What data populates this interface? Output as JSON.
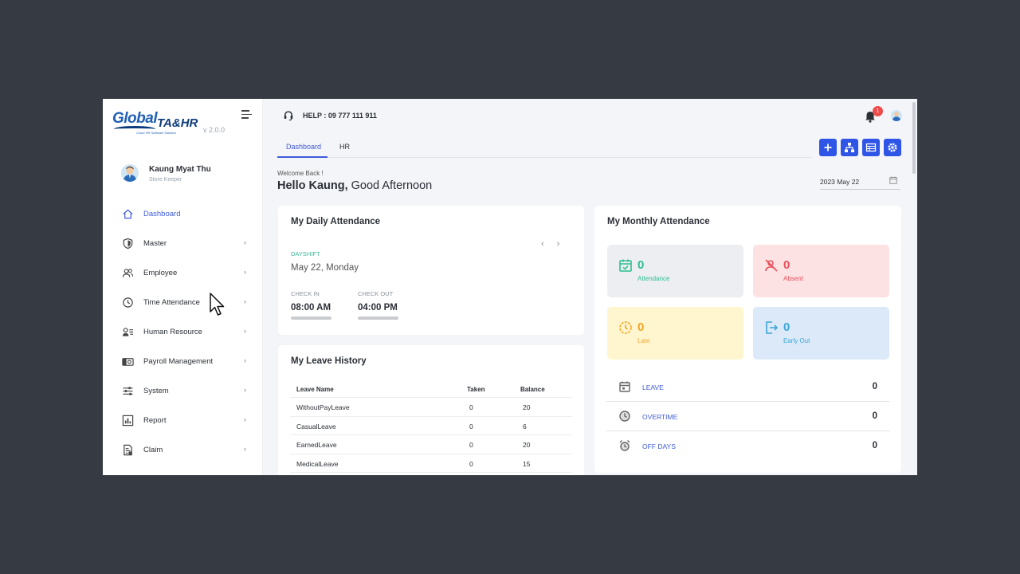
{
  "app": {
    "logo_text_1": "Global",
    "logo_text_2": "TA&HR",
    "logo_tagline": "Cloud HR Software Solution",
    "version": "v 2.0.0"
  },
  "user": {
    "name": "Kaung Myat Thu",
    "role": "Store Keeper"
  },
  "sidebar": {
    "items": [
      {
        "label": "Dashboard",
        "icon": "home-icon",
        "active": true
      },
      {
        "label": "Master",
        "icon": "shield-icon"
      },
      {
        "label": "Employee",
        "icon": "users-icon"
      },
      {
        "label": "Time Attendance",
        "icon": "clock-icon"
      },
      {
        "label": "Human Resource",
        "icon": "id-card-icon"
      },
      {
        "label": "Payroll Management",
        "icon": "money-icon"
      },
      {
        "label": "System",
        "icon": "sliders-icon"
      },
      {
        "label": "Report",
        "icon": "chart-icon"
      },
      {
        "label": "Claim",
        "icon": "document-icon"
      }
    ],
    "chevron": "›"
  },
  "header": {
    "help": "HELP : 09 777 111 911",
    "notification_count": "1"
  },
  "tabs": [
    {
      "label": "Dashboard",
      "active": true
    },
    {
      "label": "HR"
    }
  ],
  "actions": [
    "plus-icon",
    "org-chart-icon",
    "table-icon",
    "settings-icon"
  ],
  "greeting": {
    "welcome": "Welcome Back !",
    "hello": "Hello Kaung,",
    "salutation": " Good Afternoon"
  },
  "date_picker": {
    "value": "2023 May 22"
  },
  "daily_attendance": {
    "title": "My Daily Attendance",
    "prev": "‹",
    "next": "›",
    "shift": "DAYSHIFT",
    "date": "May 22, Monday",
    "check_in_label": "CHECK IN",
    "check_in_time": "08:00 AM",
    "check_out_label": "CHECK OUT",
    "check_out_time": "04:00 PM"
  },
  "leave_history": {
    "title": "My Leave History",
    "headers": [
      "Leave Name",
      "Taken",
      "Balance"
    ],
    "rows": [
      [
        "WithoutPayLeave",
        "0",
        "20"
      ],
      [
        "CasualLeave",
        "0",
        "6"
      ],
      [
        "EarnedLeave",
        "0",
        "20"
      ],
      [
        "MedicalLeave",
        "0",
        "15"
      ]
    ]
  },
  "monthly_attendance": {
    "title": "My Monthly Attendance",
    "stats": [
      {
        "label": "Attendance",
        "value": "0",
        "color": "#2fbf8f",
        "bg": "#eceef1"
      },
      {
        "label": "Absent",
        "value": "0",
        "color": "#e8505b",
        "bg": "#fde2e4"
      },
      {
        "label": "Late",
        "value": "0",
        "color": "#f5a524",
        "bg": "#fff6cf"
      },
      {
        "label": "Early Out",
        "value": "0",
        "color": "#3aa6d8",
        "bg": "#dce9f8"
      }
    ],
    "summary": [
      {
        "label": "LEAVE",
        "value": "0"
      },
      {
        "label": "OVERTIME",
        "value": "0"
      },
      {
        "label": "OFF DAYS",
        "value": "0"
      }
    ]
  },
  "colors": {
    "accent": "#3f5bd6",
    "button": "#2f55e6",
    "backdrop": "#363b43"
  }
}
